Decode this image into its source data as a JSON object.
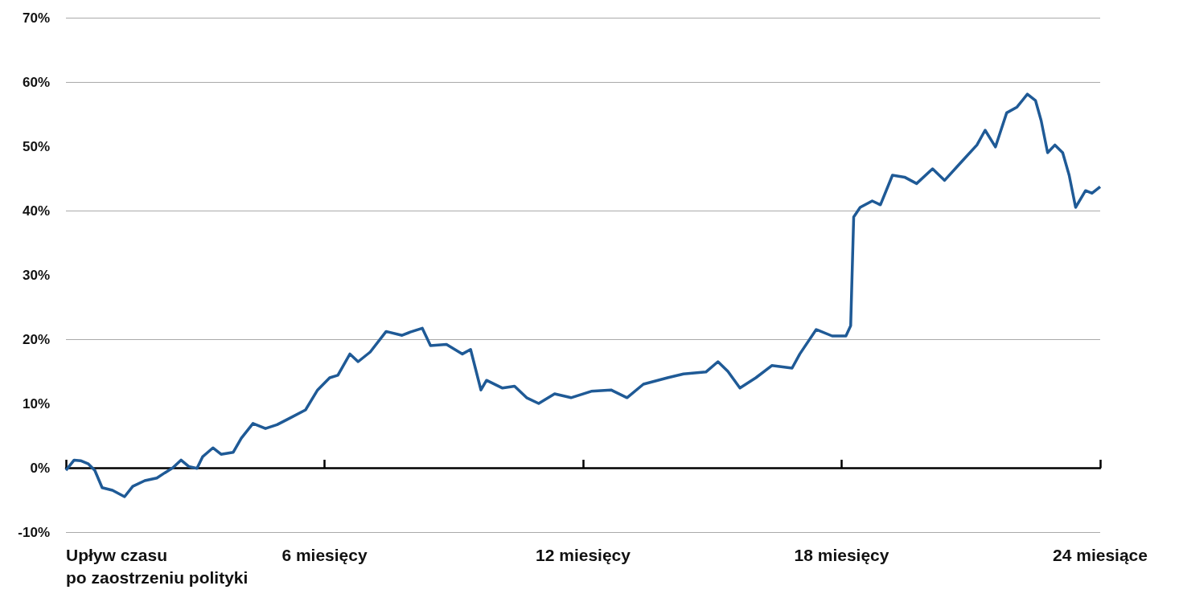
{
  "chart_data": {
    "type": "line",
    "x": [
      0,
      0.19,
      0.34,
      0.52,
      0.67,
      0.84,
      1.08,
      1.36,
      1.55,
      1.83,
      2.11,
      2.29,
      2.48,
      2.67,
      2.85,
      3.04,
      3.17,
      3.41,
      3.6,
      3.88,
      4.07,
      4.34,
      4.63,
      4.9,
      5.19,
      5.56,
      5.84,
      6.12,
      6.31,
      6.59,
      6.78,
      7.06,
      7.43,
      7.8,
      7.99,
      8.27,
      8.46,
      8.83,
      9.2,
      9.39,
      9.63,
      9.76,
      10.13,
      10.41,
      10.69,
      10.97,
      11.34,
      11.72,
      12.19,
      12.65,
      13.02,
      13.4,
      13.96,
      14.33,
      14.85,
      15.13,
      15.36,
      15.64,
      16.01,
      16.38,
      16.85,
      17.03,
      17.41,
      17.78,
      18.1,
      18.21,
      18.28,
      18.43,
      18.71,
      18.9,
      19.18,
      19.46,
      19.74,
      20.11,
      20.39,
      20.77,
      21.14,
      21.33,
      21.57,
      21.83,
      22.07,
      22.31,
      22.5,
      22.63,
      22.78,
      22.95,
      23.13,
      23.28,
      23.43,
      23.66,
      23.81,
      24
    ],
    "series": [
      {
        "color": "#1f5a96",
        "values": [
          -0.4,
          1.2,
          1.1,
          0.6,
          -0.4,
          -3.1,
          -3.5,
          -4.5,
          -2.9,
          -2,
          -1.6,
          -0.8,
          0,
          1.2,
          0.2,
          -0.1,
          1.7,
          3.1,
          2.1,
          2.4,
          4.6,
          6.9,
          6.1,
          6.7,
          7.7,
          9,
          12.1,
          14,
          14.4,
          17.7,
          16.5,
          18,
          21.2,
          20.6,
          21.1,
          21.7,
          19,
          19.2,
          17.7,
          18.4,
          12.1,
          13.6,
          12.4,
          12.7,
          10.9,
          10,
          11.5,
          10.9,
          11.9,
          12.1,
          10.9,
          13,
          14,
          14.6,
          14.9,
          16.5,
          15,
          12.4,
          14,
          15.9,
          15.5,
          17.7,
          21.5,
          20.5,
          20.5,
          22.1,
          39,
          40.5,
          41.5,
          40.9,
          45.5,
          45.2,
          44.2,
          46.5,
          44.7,
          47.5,
          50.2,
          52.5,
          49.9,
          55.2,
          56.1,
          58.1,
          57.1,
          54,
          49,
          50.2,
          49,
          45.5,
          40.5,
          43.1,
          42.7,
          43.7
        ]
      }
    ],
    "xlim": [
      0,
      24
    ],
    "xticks": [
      {
        "value": 0,
        "label": "Upływ czasu\npo zaostrzeniu polityki"
      },
      {
        "value": 6,
        "label": "6 miesięcy"
      },
      {
        "value": 12,
        "label": "12 miesięcy"
      },
      {
        "value": 18,
        "label": "18 miesięcy"
      },
      {
        "value": 24,
        "label": "24 miesiące"
      }
    ],
    "ylim": [
      -10,
      70
    ],
    "yticks": [
      {
        "value": -10,
        "label": "-10%"
      },
      {
        "value": 0,
        "label": "0%"
      },
      {
        "value": 10,
        "label": "10%"
      },
      {
        "value": 20,
        "label": "20%"
      },
      {
        "value": 30,
        "label": "30%"
      },
      {
        "value": 40,
        "label": "40%"
      },
      {
        "value": 50,
        "label": "50%"
      },
      {
        "value": 60,
        "label": "60%"
      },
      {
        "value": 70,
        "label": "70%"
      }
    ],
    "grid": "y",
    "marker": "none",
    "line_style": "solid"
  }
}
